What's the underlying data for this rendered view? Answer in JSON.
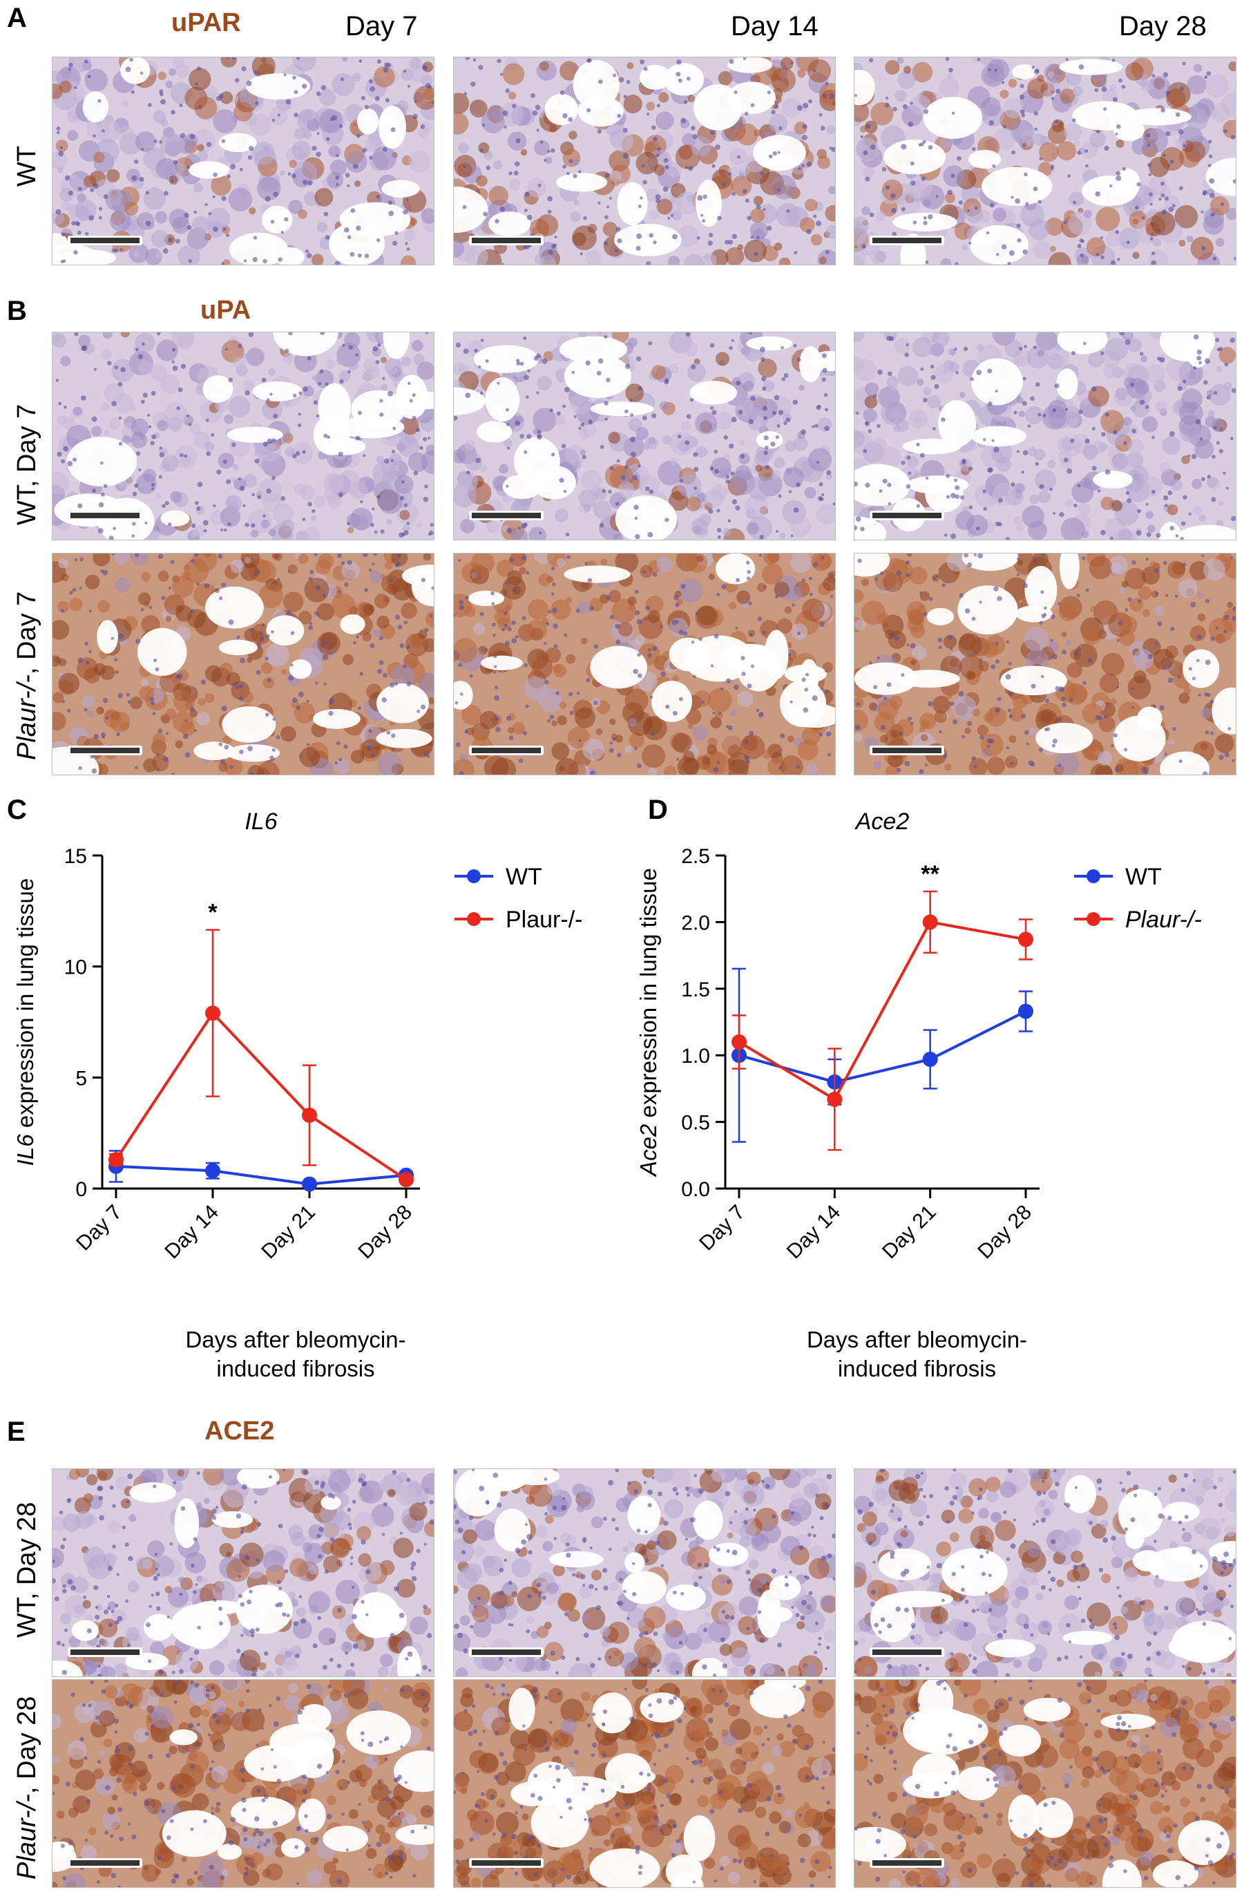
{
  "panel_A": {
    "letter": "A",
    "stain": "uPAR",
    "days": [
      "Day 7",
      "Day 14",
      "Day 28"
    ],
    "row_label": "WT",
    "stain_color": "#9b4a1c"
  },
  "panel_B": {
    "letter": "B",
    "stain": "uPA",
    "row_labels": [
      {
        "genotype": "WT",
        "suffix": ", Day 7"
      },
      {
        "genotype": "Plaur-/-",
        "suffix": ", Day 7"
      }
    ]
  },
  "panel_E": {
    "letter": "E",
    "stain": "ACE2",
    "row_labels": [
      {
        "genotype": "WT",
        "suffix": ", Day 28"
      },
      {
        "genotype": "Plaur-/-",
        "suffix": ", Day 28"
      }
    ]
  },
  "chart_data": [
    {
      "letter": "C",
      "type": "line",
      "title": "IL6",
      "ylabel_italic": "IL6",
      "ylabel_rest": " expression in lung tissue",
      "xlabel_line1": "Days after bleomycin-",
      "xlabel_line2": "induced fibrosis",
      "categories": [
        "Day 7",
        "Day 14",
        "Day 21",
        "Day 28"
      ],
      "ylim": [
        0,
        15
      ],
      "yticks": [
        "0",
        "5",
        "10",
        "15"
      ],
      "annotation": "*",
      "annotation_index": 1,
      "legend_position": "right",
      "series": [
        {
          "name": "WT",
          "color": "#1f3ee0",
          "values": [
            1.0,
            0.8,
            0.2,
            0.6
          ],
          "errors": [
            0.7,
            0.35,
            0.1,
            0.15
          ]
        },
        {
          "name": "Plaur-/-",
          "color": "#e8281c",
          "values": [
            1.3,
            7.9,
            3.3,
            0.4
          ],
          "errors": [
            0.25,
            3.75,
            2.25,
            0.1
          ]
        }
      ]
    },
    {
      "letter": "D",
      "type": "line",
      "title": "Ace2",
      "ylabel_italic": "Ace2",
      "ylabel_rest": " expression in lung tissue",
      "xlabel_line1": "Days after bleomycin-",
      "xlabel_line2": "induced fibrosis",
      "categories": [
        "Day 7",
        "Day 14",
        "Day 21",
        "Day 28"
      ],
      "ylim": [
        0,
        2.5
      ],
      "yticks": [
        "0.0",
        "0.5",
        "1.0",
        "1.5",
        "2.0",
        "2.5"
      ],
      "annotation": "**",
      "annotation_index": 2,
      "legend_position": "right",
      "series": [
        {
          "name": "WT",
          "color": "#1f3ee0",
          "values": [
            1.0,
            0.8,
            0.97,
            1.33
          ],
          "errors": [
            0.65,
            0.17,
            0.22,
            0.15
          ]
        },
        {
          "name": "Plaur-/-",
          "color": "#e8281c",
          "values": [
            1.1,
            0.67,
            2.0,
            1.87
          ],
          "errors": [
            0.2,
            0.38,
            0.23,
            0.15
          ]
        }
      ]
    }
  ]
}
